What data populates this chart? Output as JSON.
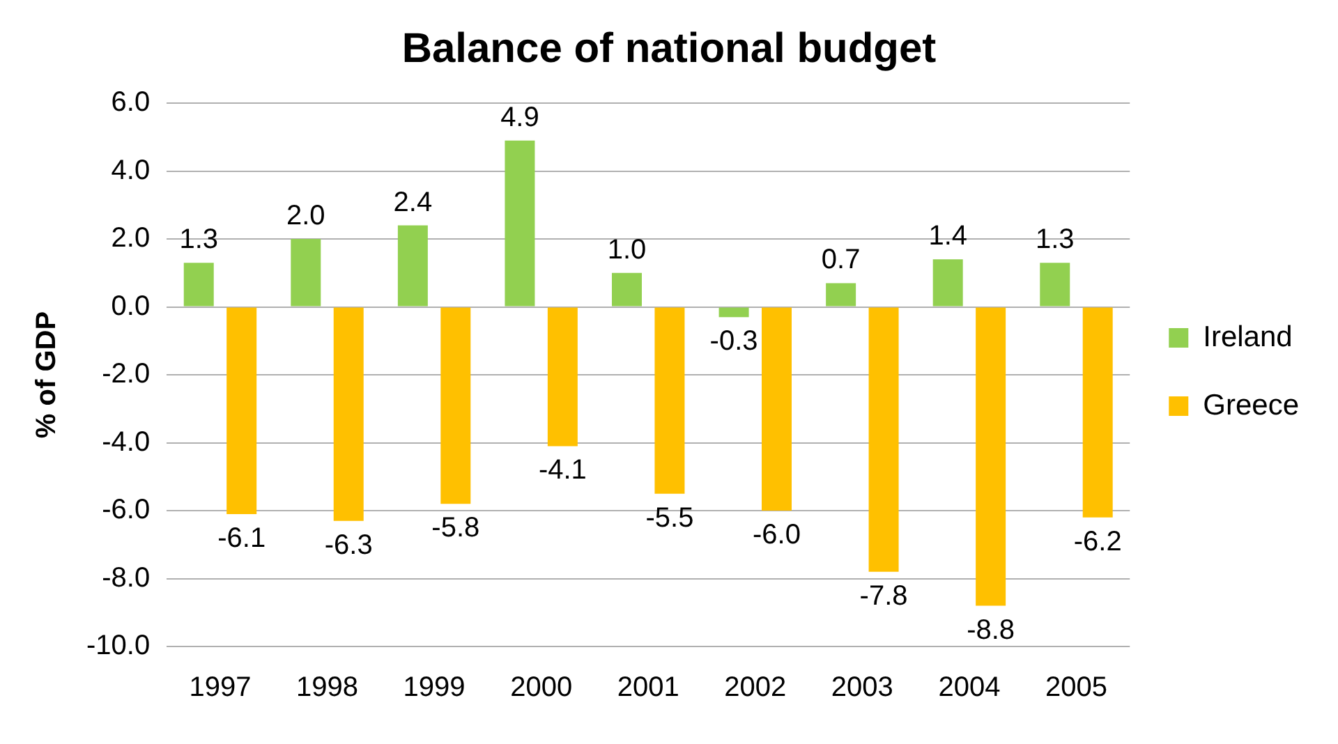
{
  "chart_data": {
    "type": "bar",
    "title": "Balance of national budget",
    "ylabel": "% of GDP",
    "categories": [
      "1997",
      "1998",
      "1999",
      "2000",
      "2001",
      "2002",
      "2003",
      "2004",
      "2005"
    ],
    "series": [
      {
        "name": "Ireland",
        "color": "#92d050",
        "values": [
          1.3,
          2.0,
          2.4,
          4.9,
          1.0,
          -0.3,
          0.7,
          1.4,
          1.3
        ],
        "value_labels": [
          "1.3",
          "2.0",
          "2.4",
          "4.9",
          "1.0",
          "-0.3",
          "0.7",
          "1.4",
          "1.3"
        ]
      },
      {
        "name": "Greece",
        "color": "#ffc000",
        "values": [
          -6.1,
          -6.3,
          -5.8,
          -4.1,
          -5.5,
          -6.0,
          -7.8,
          -8.8,
          -6.2
        ],
        "value_labels": [
          "-6.1",
          "-6.3",
          "-5.8",
          "-4.1",
          "-5.5",
          "-6.0",
          "-7.8",
          "-8.8",
          "-6.2"
        ]
      }
    ],
    "ylim": [
      -10,
      6
    ],
    "yticks": [
      {
        "value": -10,
        "label": "-10.0"
      },
      {
        "value": -8,
        "label": "-8.0"
      },
      {
        "value": -6,
        "label": "-6.0"
      },
      {
        "value": -4,
        "label": "-4.0"
      },
      {
        "value": -2,
        "label": "-2.0"
      },
      {
        "value": 0,
        "label": "0.0"
      },
      {
        "value": 2,
        "label": "2.0"
      },
      {
        "value": 4,
        "label": "4.0"
      },
      {
        "value": 6,
        "label": "6.0"
      }
    ],
    "grid": "y",
    "legend": "right"
  }
}
